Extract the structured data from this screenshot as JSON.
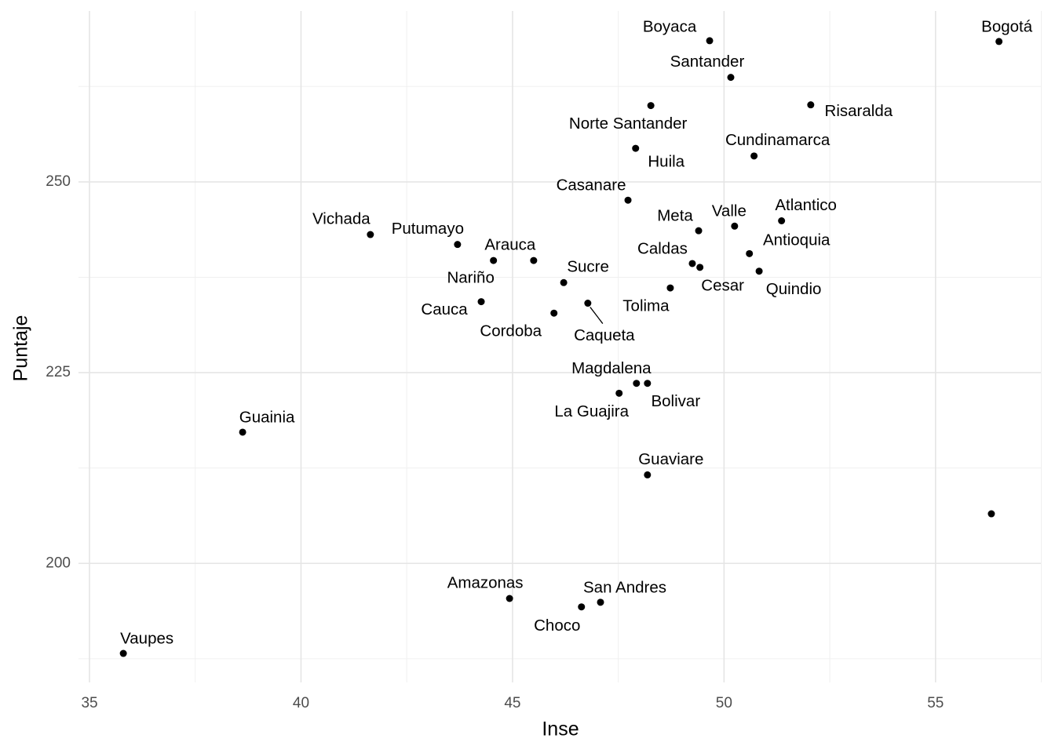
{
  "chart_data": {
    "type": "scatter",
    "xlabel": "Inse",
    "ylabel": "Puntaje",
    "labels": [
      "Boyaca",
      "Bogotá",
      "Santander",
      "Norte Santander",
      "Risaralda",
      "Huila",
      "Cundinamarca",
      "Casanare",
      "Vichada",
      "Putumayo",
      "Nariño",
      "Arauca",
      "Meta",
      "Valle",
      "Atlantico",
      "Antioquia",
      "Caldas",
      "Cesar",
      "Quindio",
      "Sucre",
      "Tolima",
      "Caqueta",
      "Cauca",
      "Cordoba",
      "Magdalena",
      "Bolivar",
      "La Guajira",
      "Guainia",
      "Guaviare",
      null,
      "Amazonas",
      "San Andres",
      "Choco",
      "Vaupes"
    ],
    "x": [
      49.66,
      56.5,
      50.16,
      48.27,
      52.05,
      47.91,
      50.71,
      47.73,
      41.64,
      43.7,
      44.55,
      45.5,
      49.4,
      50.25,
      51.36,
      50.6,
      49.25,
      49.43,
      50.83,
      46.21,
      48.73,
      46.78,
      44.26,
      45.98,
      47.93,
      48.19,
      47.52,
      38.62,
      48.19,
      56.32,
      44.93,
      47.08,
      46.63,
      35.8
    ],
    "values": [
      268.5,
      268.4,
      263.7,
      260.0,
      260.1,
      254.4,
      253.4,
      247.6,
      243.1,
      241.8,
      239.7,
      239.7,
      243.6,
      244.2,
      244.9,
      240.6,
      239.3,
      238.8,
      238.3,
      236.8,
      236.1,
      234.1,
      234.3,
      232.8,
      223.6,
      223.6,
      222.3,
      217.2,
      211.6,
      206.5,
      195.4,
      194.9,
      194.3,
      188.2
    ],
    "color": "#000000",
    "xlim": [
      34.74,
      57.49
    ],
    "xticks": [
      35,
      40,
      45,
      50,
      55
    ],
    "xminor": [
      37.5,
      42.5,
      47.5,
      52.5,
      57.5
    ],
    "ylim": [
      184.4,
      272.4
    ],
    "yticks": [
      200,
      225,
      250
    ],
    "yminor": [
      187.5,
      212.5,
      237.5,
      262.5
    ],
    "grid": true
  }
}
